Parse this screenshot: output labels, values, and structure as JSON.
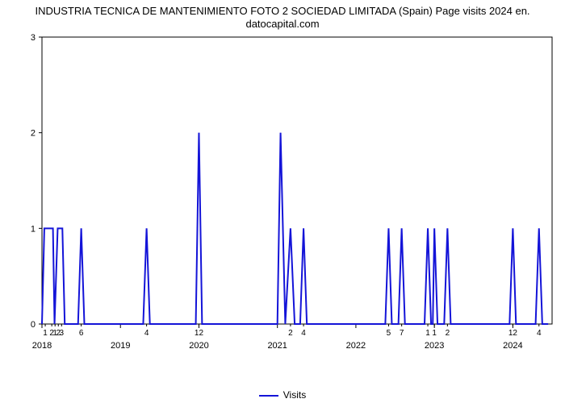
{
  "title_line1": "INDUSTRIA TECNICA DE MANTENIMIENTO FOTO 2 SOCIEDAD LIMITADA (Spain) Page visits 2024 en.",
  "title_line2": "datocapital.com",
  "title_fontsize": 13,
  "chart": {
    "type": "line",
    "background_color": "#ffffff",
    "plot_border_color": "#000000",
    "line_color": "#1414d8",
    "line_width": 2,
    "ylim": [
      0,
      3
    ],
    "yticks": [
      0,
      1,
      2,
      3
    ],
    "x_years": [
      2018,
      2019,
      2020,
      2021,
      2022,
      2023,
      2024
    ],
    "x_domain": [
      2018.0,
      2024.5
    ],
    "minor_ticks": [
      {
        "x": 2018.0417,
        "label": "1"
      },
      {
        "x": 2018.125,
        "label": "2"
      },
      {
        "x": 2018.1667,
        "label": "1"
      },
      {
        "x": 2018.2083,
        "label": "2"
      },
      {
        "x": 2018.25,
        "label": "3"
      },
      {
        "x": 2018.5,
        "label": "6"
      },
      {
        "x": 2019.333,
        "label": "4"
      },
      {
        "x": 2020.0,
        "label": "12"
      },
      {
        "x": 2021.1667,
        "label": "2"
      },
      {
        "x": 2021.333,
        "label": "4"
      },
      {
        "x": 2022.4167,
        "label": "5"
      },
      {
        "x": 2022.5833,
        "label": "7"
      },
      {
        "x": 2022.9167,
        "label": "1"
      },
      {
        "x": 2023.0,
        "label": "1"
      },
      {
        "x": 2023.1667,
        "label": "2"
      },
      {
        "x": 2024.0,
        "label": "12"
      },
      {
        "x": 2024.333,
        "label": "4"
      }
    ],
    "series": [
      {
        "x": 2018.0,
        "y": 0
      },
      {
        "x": 2018.03,
        "y": 1
      },
      {
        "x": 2018.14,
        "y": 1
      },
      {
        "x": 2018.16,
        "y": 0
      },
      {
        "x": 2018.2,
        "y": 1
      },
      {
        "x": 2018.26,
        "y": 1
      },
      {
        "x": 2018.29,
        "y": 0
      },
      {
        "x": 2018.46,
        "y": 0
      },
      {
        "x": 2018.5,
        "y": 1
      },
      {
        "x": 2018.54,
        "y": 0
      },
      {
        "x": 2019.29,
        "y": 0
      },
      {
        "x": 2019.333,
        "y": 1
      },
      {
        "x": 2019.375,
        "y": 0
      },
      {
        "x": 2019.96,
        "y": 0
      },
      {
        "x": 2020.0,
        "y": 2
      },
      {
        "x": 2020.04,
        "y": 0
      },
      {
        "x": 2021.0,
        "y": 0
      },
      {
        "x": 2021.04,
        "y": 2
      },
      {
        "x": 2021.1,
        "y": 0
      },
      {
        "x": 2021.1667,
        "y": 1
      },
      {
        "x": 2021.22,
        "y": 0
      },
      {
        "x": 2021.29,
        "y": 0
      },
      {
        "x": 2021.333,
        "y": 1
      },
      {
        "x": 2021.375,
        "y": 0
      },
      {
        "x": 2022.375,
        "y": 0
      },
      {
        "x": 2022.4167,
        "y": 1
      },
      {
        "x": 2022.458,
        "y": 0
      },
      {
        "x": 2022.542,
        "y": 0
      },
      {
        "x": 2022.5833,
        "y": 1
      },
      {
        "x": 2022.625,
        "y": 0
      },
      {
        "x": 2022.875,
        "y": 0
      },
      {
        "x": 2022.9167,
        "y": 1
      },
      {
        "x": 2022.958,
        "y": 0
      },
      {
        "x": 2022.98,
        "y": 0
      },
      {
        "x": 2023.0,
        "y": 1
      },
      {
        "x": 2023.04,
        "y": 0
      },
      {
        "x": 2023.125,
        "y": 0
      },
      {
        "x": 2023.1667,
        "y": 1
      },
      {
        "x": 2023.208,
        "y": 0
      },
      {
        "x": 2023.958,
        "y": 0
      },
      {
        "x": 2024.0,
        "y": 1
      },
      {
        "x": 2024.04,
        "y": 0
      },
      {
        "x": 2024.29,
        "y": 0
      },
      {
        "x": 2024.333,
        "y": 1
      },
      {
        "x": 2024.375,
        "y": 0
      },
      {
        "x": 2024.45,
        "y": 0
      }
    ]
  },
  "legend_label": "Visits"
}
